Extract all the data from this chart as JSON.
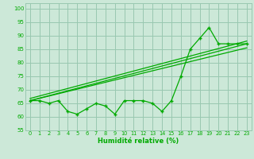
{
  "xlabel": "Humidité relative (%)",
  "xlim": [
    -0.5,
    23.5
  ],
  "ylim": [
    55,
    102
  ],
  "yticks": [
    55,
    60,
    65,
    70,
    75,
    80,
    85,
    90,
    95,
    100
  ],
  "xticks": [
    0,
    1,
    2,
    3,
    4,
    5,
    6,
    7,
    8,
    9,
    10,
    11,
    12,
    13,
    14,
    15,
    16,
    17,
    18,
    19,
    20,
    21,
    22,
    23
  ],
  "bg_color": "#cce8d8",
  "grid_color": "#99c8b0",
  "line_color": "#00aa00",
  "data_x": [
    0,
    1,
    2,
    3,
    4,
    5,
    6,
    7,
    8,
    9,
    10,
    11,
    12,
    13,
    14,
    15,
    16,
    17,
    18,
    19,
    20,
    21,
    22,
    23
  ],
  "data_y": [
    66,
    66,
    65,
    66,
    62,
    61,
    63,
    65,
    64,
    61,
    66,
    66,
    66,
    65,
    62,
    66,
    75,
    85,
    89,
    93,
    87,
    87,
    87,
    87
  ],
  "trend1_x": [
    0,
    23
  ],
  "trend1_y": [
    66,
    87
  ],
  "trend2_x": [
    0,
    23
  ],
  "trend2_y": [
    66.8,
    88.0
  ],
  "trend3_x": [
    0,
    23
  ],
  "trend3_y": [
    66,
    85.5
  ]
}
